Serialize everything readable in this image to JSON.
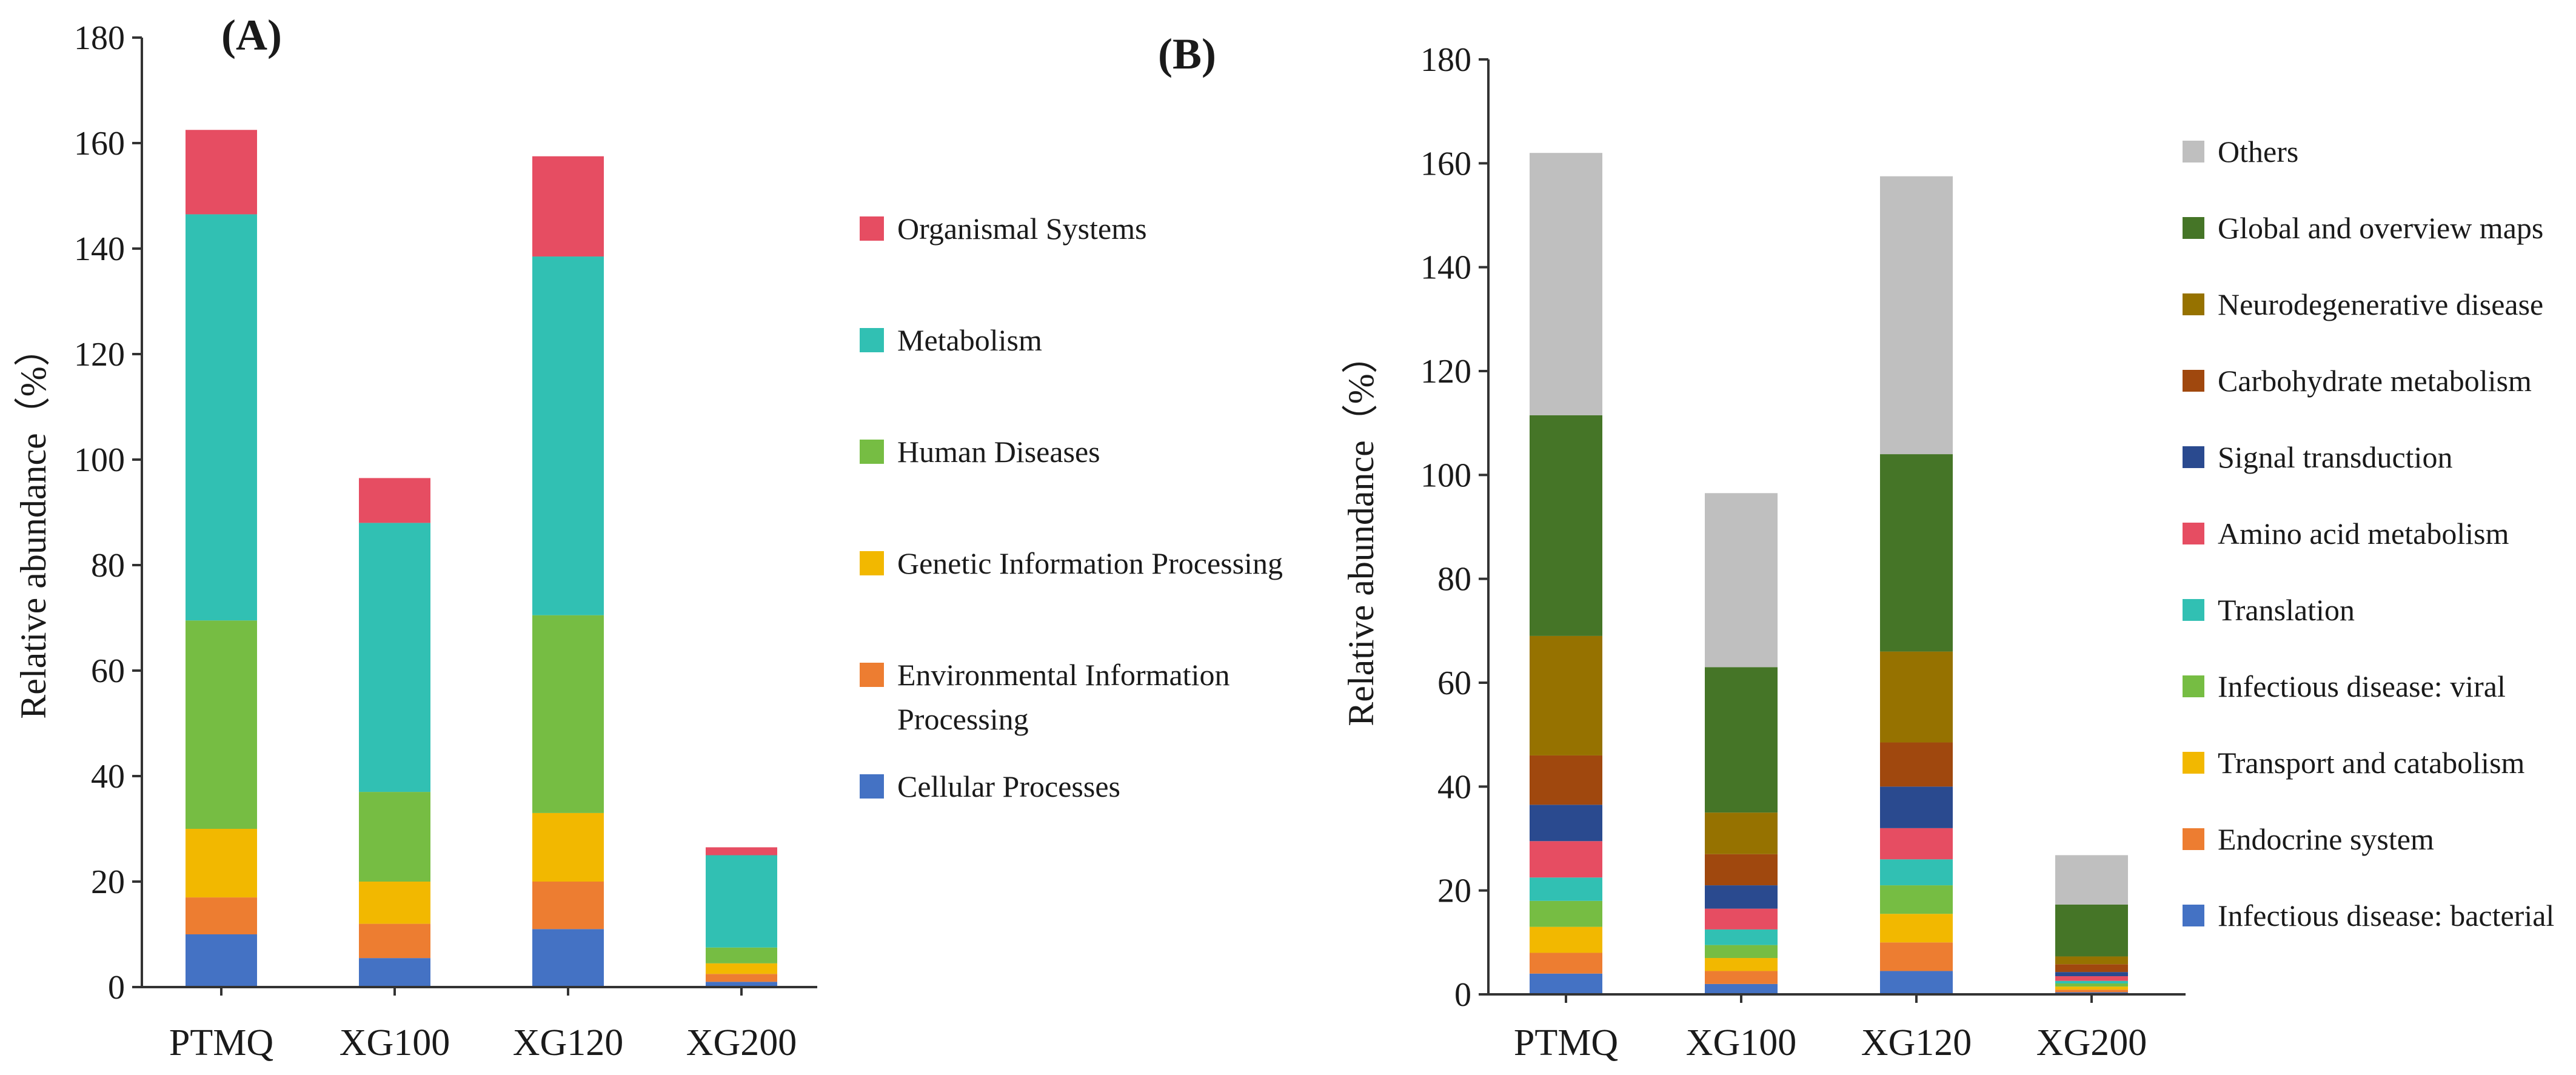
{
  "figure": {
    "panel_a": "A",
    "panel_b": "B"
  },
  "chart_data": [
    {
      "type": "bar",
      "stacked": true,
      "panel": "A",
      "title": "",
      "xlabel": "",
      "ylabel": "Relative abundance（%）",
      "ylim": [
        0,
        180
      ],
      "yticks": [
        0,
        20,
        40,
        60,
        80,
        100,
        120,
        140,
        160,
        180
      ],
      "categories": [
        "PTMQ",
        "XG100",
        "XG120",
        "XG200"
      ],
      "series": [
        {
          "name": "Cellular Processes",
          "color": "#4472C4",
          "values": [
            10,
            5.5,
            11,
            1
          ]
        },
        {
          "name": "Environmental Information Processing",
          "color": "#ED7D31",
          "values": [
            7,
            6.5,
            9,
            1.5
          ]
        },
        {
          "name": "Genetic Information Processing",
          "color": "#F2B800",
          "values": [
            13,
            8,
            13,
            2
          ]
        },
        {
          "name": "Human Diseases",
          "color": "#76BD43",
          "values": [
            39.5,
            17,
            37.5,
            3
          ]
        },
        {
          "name": "Metabolism",
          "color": "#31C0B3",
          "values": [
            77,
            51,
            68,
            17.5
          ]
        },
        {
          "name": "Organismal Systems",
          "color": "#E64D62",
          "values": [
            16,
            8.5,
            19,
            1.5
          ]
        }
      ]
    },
    {
      "type": "bar",
      "stacked": true,
      "panel": "B",
      "title": "",
      "xlabel": "",
      "ylabel": "Relative abundance（%）",
      "ylim": [
        0,
        180
      ],
      "yticks": [
        0,
        20,
        40,
        60,
        80,
        100,
        120,
        140,
        160,
        180
      ],
      "categories": [
        "PTMQ",
        "XG100",
        "XG120",
        "XG200"
      ],
      "series": [
        {
          "name": "Infectious disease: bacterial",
          "color": "#4472C4",
          "values": [
            4,
            2,
            4.5,
            0.4
          ]
        },
        {
          "name": "Endocrine system",
          "color": "#ED7D31",
          "values": [
            4,
            2.5,
            5.5,
            0.5
          ]
        },
        {
          "name": "Transport and catabolism",
          "color": "#F2B800",
          "values": [
            5,
            2.5,
            5.5,
            0.6
          ]
        },
        {
          "name": "Infectious disease: viral",
          "color": "#76BD43",
          "values": [
            5,
            2.5,
            5.5,
            0.6
          ]
        },
        {
          "name": "Translation",
          "color": "#31C0B3",
          "values": [
            4.5,
            3,
            5,
            0.5
          ]
        },
        {
          "name": "Amino acid metabolism",
          "color": "#E64D62",
          "values": [
            7,
            4,
            6,
            0.9
          ]
        },
        {
          "name": "Signal transduction",
          "color": "#2A4A8F",
          "values": [
            7,
            4.5,
            8,
            0.8
          ]
        },
        {
          "name": "Carbohydrate metabolism",
          "color": "#A0480E",
          "values": [
            9.5,
            6,
            8.5,
            1.5
          ]
        },
        {
          "name": "Neurodegenerative disease",
          "color": "#967200",
          "values": [
            23,
            8,
            17.5,
            1.5
          ]
        },
        {
          "name": "Global and overview maps",
          "color": "#457527",
          "values": [
            42.5,
            28,
            38,
            10
          ]
        },
        {
          "name": "Others",
          "color": "#BFBFBF",
          "values": [
            50.5,
            33.5,
            53.5,
            9.5
          ]
        }
      ]
    }
  ]
}
